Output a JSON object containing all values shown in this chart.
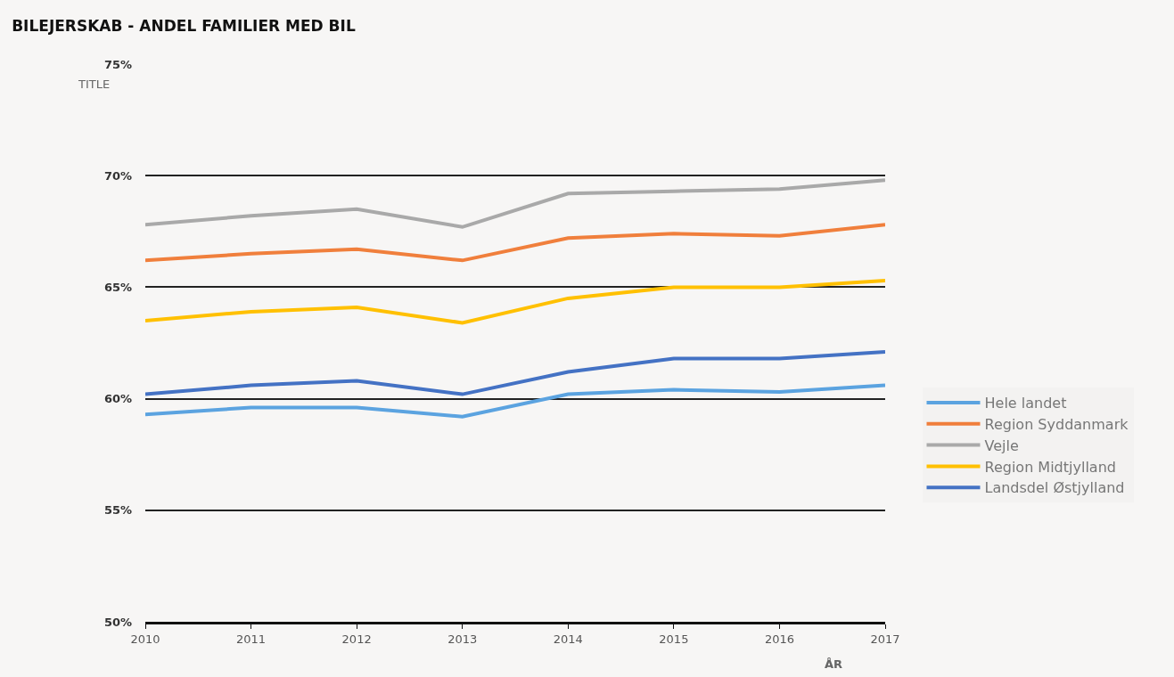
{
  "chart_data": {
    "type": "line",
    "title": "BILEJERSKAB - ANDEL FAMILIER MED BIL",
    "ylabel": "TITLE",
    "xlabel": "ÅR",
    "x": [
      2010,
      2011,
      2012,
      2013,
      2014,
      2015,
      2016,
      2017
    ],
    "xlim": [
      2010,
      2017
    ],
    "xticks": [
      2010,
      2011,
      2012,
      2013,
      2014,
      2015,
      2016,
      2017
    ],
    "ylim": [
      50,
      75
    ],
    "yticks": [
      {
        "value": 50,
        "label": "50%"
      },
      {
        "value": 55,
        "label": "55%"
      },
      {
        "value": 60,
        "label": "60%"
      },
      {
        "value": 65,
        "label": "65%"
      },
      {
        "value": 70,
        "label": "70%"
      },
      {
        "value": 75,
        "label": "75%"
      }
    ],
    "grid": "y",
    "legend": "bottom right",
    "marker": "none",
    "line_style": "solid",
    "series": [
      {
        "name": "Hele landet",
        "color": "#5ba3e0",
        "values": [
          59.3,
          59.6,
          59.6,
          59.2,
          60.2,
          60.4,
          60.3,
          60.6
        ]
      },
      {
        "name": "Region Syddanmark",
        "color": "#f07f3c",
        "values": [
          66.2,
          66.5,
          66.7,
          66.2,
          67.2,
          67.4,
          67.3,
          67.8
        ]
      },
      {
        "name": "Vejle",
        "color": "#a9a9a9",
        "values": [
          67.8,
          68.2,
          68.5,
          67.7,
          69.2,
          69.3,
          69.4,
          69.8
        ]
      },
      {
        "name": "Region Midtjylland",
        "color": "#ffc000",
        "values": [
          63.5,
          63.9,
          64.1,
          63.4,
          64.5,
          65.0,
          65.0,
          65.3
        ]
      },
      {
        "name": "Landsdel Østjylland",
        "color": "#4472c4",
        "values": [
          60.2,
          60.6,
          60.8,
          60.2,
          61.2,
          61.8,
          61.8,
          62.1
        ]
      }
    ]
  }
}
